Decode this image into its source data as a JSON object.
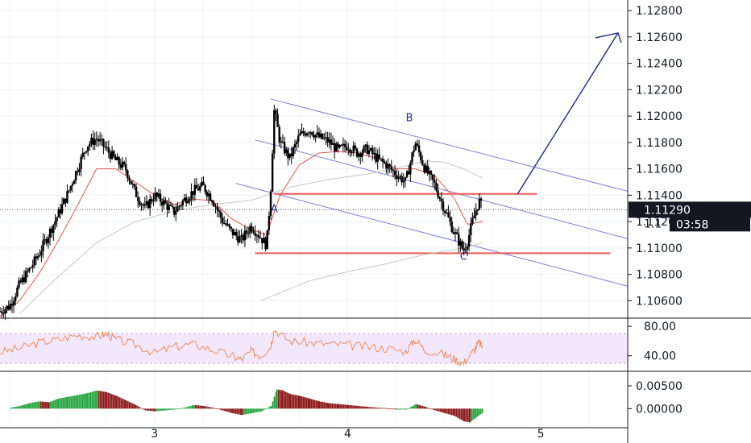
{
  "chart_data": [
    {
      "type": "candlestick",
      "pane": "price",
      "yticks": [
        "1.12800",
        "1.12600",
        "1.12400",
        "1.12200",
        "1.12000",
        "1.11800",
        "1.11600",
        "1.11400",
        "1.11200",
        "1.11000",
        "1.10800",
        "1.10600"
      ],
      "ytick_values": [
        1.128,
        1.126,
        1.124,
        1.122,
        1.12,
        1.118,
        1.116,
        1.114,
        1.112,
        1.11,
        1.108,
        1.106
      ],
      "ylim": [
        1.1048,
        1.1288
      ],
      "xticks": [
        "3",
        "4",
        "5"
      ],
      "xtick_values": [
        3,
        4,
        5
      ],
      "xlim": [
        2.2,
        5.45
      ],
      "current_price_label": "1.11290",
      "current_price": 1.1129,
      "partial_price_label": "1.1",
      "countdown_label": "03:58",
      "wave_labels": [
        {
          "text": "A",
          "x": 3.62,
          "y": 1.1127
        },
        {
          "text": "B",
          "x": 4.32,
          "y": 1.1196
        },
        {
          "text": "C",
          "x": 4.6,
          "y": 1.1091
        }
      ],
      "horizontal_levels": [
        {
          "value": 1.1141,
          "from": 3.62,
          "to": 4.98,
          "color": "#f05a5a"
        },
        {
          "value": 1.1096,
          "from": 3.52,
          "to": 5.36,
          "color": "#f05a5a"
        }
      ],
      "channel_lines": [
        {
          "x1": 3.6,
          "y1": 1.1213,
          "x2": 5.45,
          "y2": 1.1143
        },
        {
          "x1": 3.52,
          "y1": 1.1182,
          "x2": 5.45,
          "y2": 1.1107
        },
        {
          "x1": 3.42,
          "y1": 1.1149,
          "x2": 5.45,
          "y2": 1.1071
        }
      ],
      "projection_line": {
        "x1": 4.88,
        "y1": 1.1141,
        "x2": 5.4,
        "y2": 1.1263
      },
      "series": [
        {
          "name": "price",
          "values": [
            [
              2.2,
              1.1052
            ],
            [
              2.25,
              1.1056
            ],
            [
              2.3,
              1.1072
            ],
            [
              2.35,
              1.1083
            ],
            [
              2.4,
              1.1095
            ],
            [
              2.45,
              1.111
            ],
            [
              2.5,
              1.1125
            ],
            [
              2.55,
              1.1141
            ],
            [
              2.6,
              1.116
            ],
            [
              2.65,
              1.1178
            ],
            [
              2.7,
              1.1183
            ],
            [
              2.75,
              1.1175
            ],
            [
              2.8,
              1.1166
            ],
            [
              2.85,
              1.116
            ],
            [
              2.9,
              1.1142
            ],
            [
              2.95,
              1.113
            ],
            [
              3.0,
              1.114
            ],
            [
              3.05,
              1.1134
            ],
            [
              3.1,
              1.1127
            ],
            [
              3.15,
              1.1136
            ],
            [
              3.2,
              1.1143
            ],
            [
              3.25,
              1.1147
            ],
            [
              3.3,
              1.1137
            ],
            [
              3.35,
              1.1121
            ],
            [
              3.4,
              1.1112
            ],
            [
              3.45,
              1.1106
            ],
            [
              3.5,
              1.1117
            ],
            [
              3.55,
              1.1108
            ],
            [
              3.58,
              1.1102
            ],
            [
              3.6,
              1.114
            ],
            [
              3.62,
              1.1205
            ],
            [
              3.65,
              1.118
            ],
            [
              3.7,
              1.1168
            ],
            [
              3.75,
              1.1185
            ],
            [
              3.8,
              1.119
            ],
            [
              3.85,
              1.1184
            ],
            [
              3.9,
              1.1181
            ],
            [
              3.95,
              1.1174
            ],
            [
              4.0,
              1.1178
            ],
            [
              4.05,
              1.1172
            ],
            [
              4.1,
              1.1175
            ],
            [
              4.15,
              1.1168
            ],
            [
              4.2,
              1.1163
            ],
            [
              4.25,
              1.1156
            ],
            [
              4.3,
              1.115
            ],
            [
              4.35,
              1.118
            ],
            [
              4.4,
              1.116
            ],
            [
              4.45,
              1.1148
            ],
            [
              4.5,
              1.113
            ],
            [
              4.55,
              1.1112
            ],
            [
              4.6,
              1.1098
            ],
            [
              4.62,
              1.1105
            ],
            [
              4.65,
              1.1122
            ],
            [
              4.68,
              1.1136
            ],
            [
              4.7,
              1.1129
            ]
          ]
        },
        {
          "name": "ema_fast",
          "values": [
            [
              2.2,
              1.1048
            ],
            [
              2.3,
              1.106
            ],
            [
              2.4,
              1.108
            ],
            [
              2.5,
              1.1105
            ],
            [
              2.6,
              1.1132
            ],
            [
              2.7,
              1.116
            ],
            [
              2.8,
              1.116
            ],
            [
              2.9,
              1.115
            ],
            [
              3.0,
              1.114
            ],
            [
              3.1,
              1.1133
            ],
            [
              3.2,
              1.1137
            ],
            [
              3.3,
              1.1136
            ],
            [
              3.4,
              1.1122
            ],
            [
              3.5,
              1.1114
            ],
            [
              3.58,
              1.111
            ],
            [
              3.65,
              1.114
            ],
            [
              3.75,
              1.1163
            ],
            [
              3.85,
              1.1172
            ],
            [
              3.95,
              1.1173
            ],
            [
              4.05,
              1.1172
            ],
            [
              4.15,
              1.1168
            ],
            [
              4.25,
              1.116
            ],
            [
              4.35,
              1.116
            ],
            [
              4.45,
              1.1155
            ],
            [
              4.55,
              1.1138
            ],
            [
              4.62,
              1.1118
            ],
            [
              4.7,
              1.112
            ]
          ]
        },
        {
          "name": "ma_slow",
          "values": [
            [
              2.3,
              1.105
            ],
            [
              2.5,
              1.1078
            ],
            [
              2.7,
              1.1104
            ],
            [
              2.9,
              1.112
            ],
            [
              3.1,
              1.1128
            ],
            [
              3.3,
              1.1133
            ],
            [
              3.5,
              1.1136
            ],
            [
              3.7,
              1.1146
            ],
            [
              3.9,
              1.1152
            ],
            [
              4.1,
              1.1156
            ],
            [
              4.3,
              1.1162
            ],
            [
              4.4,
              1.1166
            ],
            [
              4.5,
              1.1165
            ],
            [
              4.6,
              1.116
            ],
            [
              4.7,
              1.1153
            ]
          ]
        },
        {
          "name": "ma_long",
          "values": [
            [
              3.55,
              1.106
            ],
            [
              3.8,
              1.1075
            ],
            [
              4.0,
              1.1082
            ],
            [
              4.2,
              1.1088
            ],
            [
              4.4,
              1.1095
            ],
            [
              4.6,
              1.11
            ],
            [
              4.7,
              1.1104
            ]
          ]
        }
      ]
    },
    {
      "type": "line",
      "pane": "oscillator",
      "yticks": [
        "80.00",
        "40.00"
      ],
      "ytick_values": [
        80,
        40
      ],
      "ylim": [
        20,
        90
      ],
      "band": [
        30,
        70
      ],
      "series": [
        {
          "name": "oscillator",
          "values": [
            [
              2.2,
              45
            ],
            [
              2.3,
              50
            ],
            [
              2.4,
              58
            ],
            [
              2.5,
              62
            ],
            [
              2.6,
              68
            ],
            [
              2.7,
              66
            ],
            [
              2.75,
              70
            ],
            [
              2.8,
              62
            ],
            [
              2.9,
              55
            ],
            [
              3.0,
              44
            ],
            [
              3.1,
              52
            ],
            [
              3.2,
              56
            ],
            [
              3.3,
              48
            ],
            [
              3.4,
              40
            ],
            [
              3.45,
              35
            ],
            [
              3.5,
              46
            ],
            [
              3.55,
              40
            ],
            [
              3.6,
              52
            ],
            [
              3.62,
              76
            ],
            [
              3.7,
              60
            ],
            [
              3.8,
              58
            ],
            [
              3.9,
              56
            ],
            [
              4.0,
              55
            ],
            [
              4.1,
              52
            ],
            [
              4.2,
              50
            ],
            [
              4.3,
              46
            ],
            [
              4.35,
              62
            ],
            [
              4.4,
              48
            ],
            [
              4.5,
              42
            ],
            [
              4.55,
              36
            ],
            [
              4.6,
              30
            ],
            [
              4.65,
              46
            ],
            [
              4.68,
              58
            ],
            [
              4.7,
              52
            ]
          ]
        }
      ]
    },
    {
      "type": "bar",
      "pane": "histogram",
      "yticks": [
        "0.00500",
        "0.00000"
      ],
      "ytick_values": [
        0.005,
        0
      ],
      "ylim": [
        -0.004,
        0.008
      ],
      "colors": {
        "up_rising": "#26a541",
        "up_falling": "#8c1a1a",
        "down_falling": "#8c1a1a",
        "down_rising": "#26a541"
      },
      "series": [
        {
          "name": "histogram",
          "values": [
            [
              2.25,
              0.0002
            ],
            [
              2.3,
              0.0006
            ],
            [
              2.35,
              0.0012
            ],
            [
              2.4,
              0.0016
            ],
            [
              2.45,
              0.0014
            ],
            [
              2.5,
              0.0022
            ],
            [
              2.55,
              0.0026
            ],
            [
              2.6,
              0.003
            ],
            [
              2.65,
              0.0034
            ],
            [
              2.7,
              0.004
            ],
            [
              2.75,
              0.0036
            ],
            [
              2.8,
              0.0028
            ],
            [
              2.85,
              0.0018
            ],
            [
              2.9,
              0.0008
            ],
            [
              2.95,
              -0.0004
            ],
            [
              3.0,
              -0.0006
            ],
            [
              3.05,
              -0.0004
            ],
            [
              3.1,
              -0.0002
            ],
            [
              3.15,
              0.0002
            ],
            [
              3.2,
              0.0008
            ],
            [
              3.25,
              0.0006
            ],
            [
              3.3,
              0.0002
            ],
            [
              3.35,
              -0.0004
            ],
            [
              3.4,
              -0.001
            ],
            [
              3.45,
              -0.0014
            ],
            [
              3.5,
              -0.001
            ],
            [
              3.55,
              -0.0006
            ],
            [
              3.6,
              0.0006
            ],
            [
              3.63,
              0.0042
            ],
            [
              3.66,
              0.004
            ],
            [
              3.7,
              0.0032
            ],
            [
              3.75,
              0.0028
            ],
            [
              3.8,
              0.0022
            ],
            [
              3.85,
              0.0016
            ],
            [
              3.9,
              0.0012
            ],
            [
              3.95,
              0.001
            ],
            [
              4.0,
              0.0008
            ],
            [
              4.05,
              0.0006
            ],
            [
              4.1,
              0.0004
            ],
            [
              4.15,
              0.0002
            ],
            [
              4.2,
              0.0001
            ],
            [
              4.25,
              -0.0002
            ],
            [
              4.3,
              -0.0002
            ],
            [
              4.35,
              0.001
            ],
            [
              4.4,
              0.0004
            ],
            [
              4.45,
              -0.0004
            ],
            [
              4.5,
              -0.001
            ],
            [
              4.55,
              -0.0016
            ],
            [
              4.6,
              -0.0028
            ],
            [
              4.63,
              -0.003
            ],
            [
              4.66,
              -0.002
            ],
            [
              4.7,
              -0.0008
            ]
          ]
        }
      ]
    }
  ]
}
